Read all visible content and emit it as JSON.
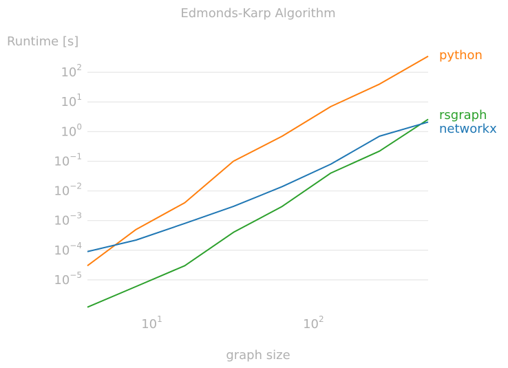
{
  "chart_data": {
    "type": "line",
    "title": "Edmonds-Karp Algorithm",
    "xlabel": "graph size",
    "ylabel": "Runtime [s]",
    "xscale": "log",
    "yscale": "log",
    "xlim": [
      4,
      512
    ],
    "ylim": [
      1e-06,
      1000
    ],
    "grid": "horizontal",
    "legend": "labels at line ends, right",
    "x_ticks": [
      {
        "base": "10",
        "exp": "1",
        "value": 10
      },
      {
        "base": "10",
        "exp": "2",
        "value": 100
      }
    ],
    "y_ticks": [
      {
        "base": "10",
        "exp": "2",
        "value": 100
      },
      {
        "base": "10",
        "exp": "1",
        "value": 10
      },
      {
        "base": "10",
        "exp": "0",
        "value": 1
      },
      {
        "base": "10",
        "exp": "−1",
        "value": 0.1
      },
      {
        "base": "10",
        "exp": "−2",
        "value": 0.01
      },
      {
        "base": "10",
        "exp": "−3",
        "value": 0.001
      },
      {
        "base": "10",
        "exp": "−4",
        "value": 0.0001
      },
      {
        "base": "10",
        "exp": "−5",
        "value": 1e-05
      }
    ],
    "x": [
      4,
      8,
      16,
      32,
      64,
      128,
      256,
      512
    ],
    "series": [
      {
        "name": "python",
        "color": "#ff7f0e",
        "values": [
          3e-05,
          0.0005,
          0.004,
          0.1,
          0.7,
          7,
          40,
          350
        ]
      },
      {
        "name": "rsgraph",
        "color": "#2ca02c",
        "values": [
          1.2e-06,
          6e-06,
          3e-05,
          0.0004,
          0.003,
          0.04,
          0.22,
          2.6
        ]
      },
      {
        "name": "networkx",
        "color": "#1f77b4",
        "values": [
          9e-05,
          0.00022,
          0.0008,
          0.003,
          0.014,
          0.08,
          0.7,
          2.1
        ]
      }
    ]
  }
}
